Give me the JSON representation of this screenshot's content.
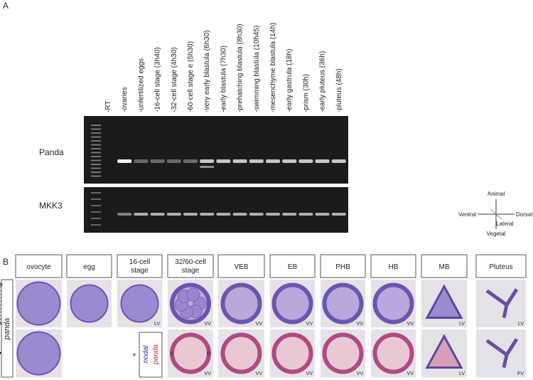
{
  "panel_a": {
    "label": "A",
    "lanes": [
      "-RT",
      "-ovaries",
      "-unfertilized eggs",
      "-16-cell stage (3h40)",
      "-32-cell stage (4h30)",
      "-60-cell stage e (5h30)",
      "-very early blastula (6h30)",
      "-early blastula (7h30)",
      "-prehatching blastula (8h30)",
      "-swimming blastula (10h45)",
      "-mesenchyme blastula (14h)",
      "-early gastrula (18h)",
      "-prism (30h)",
      "-early pluteus (36h)",
      "-pluteus (48h)"
    ],
    "rows": [
      "Panda",
      "MKK3"
    ],
    "axes": {
      "animal": "Animal",
      "vegetal": "Vegetal",
      "ventral": "Ventral",
      "dorsal": "Dorsal",
      "lateral": "Lateral"
    }
  },
  "panel_b": {
    "label": "B",
    "stages": [
      "ovocyte",
      "egg",
      "16-cell stage",
      "32/60-cell stage",
      "VEB",
      "EB",
      "PHB",
      "HB",
      "MB",
      "Pluteus"
    ],
    "row_label": "panda",
    "ovocyte_axis": [
      "a",
      "v"
    ],
    "row1_views": [
      "LV",
      "VV",
      "VV",
      "VV",
      "VV",
      "VV",
      "LV",
      "LV"
    ],
    "row2_views": [
      "VV",
      "VV",
      "VV",
      "VV",
      "VV",
      "LV",
      "FV"
    ],
    "side_labels": [
      "V",
      "D"
    ],
    "legend": [
      "nodal",
      "+",
      "panda"
    ]
  }
}
